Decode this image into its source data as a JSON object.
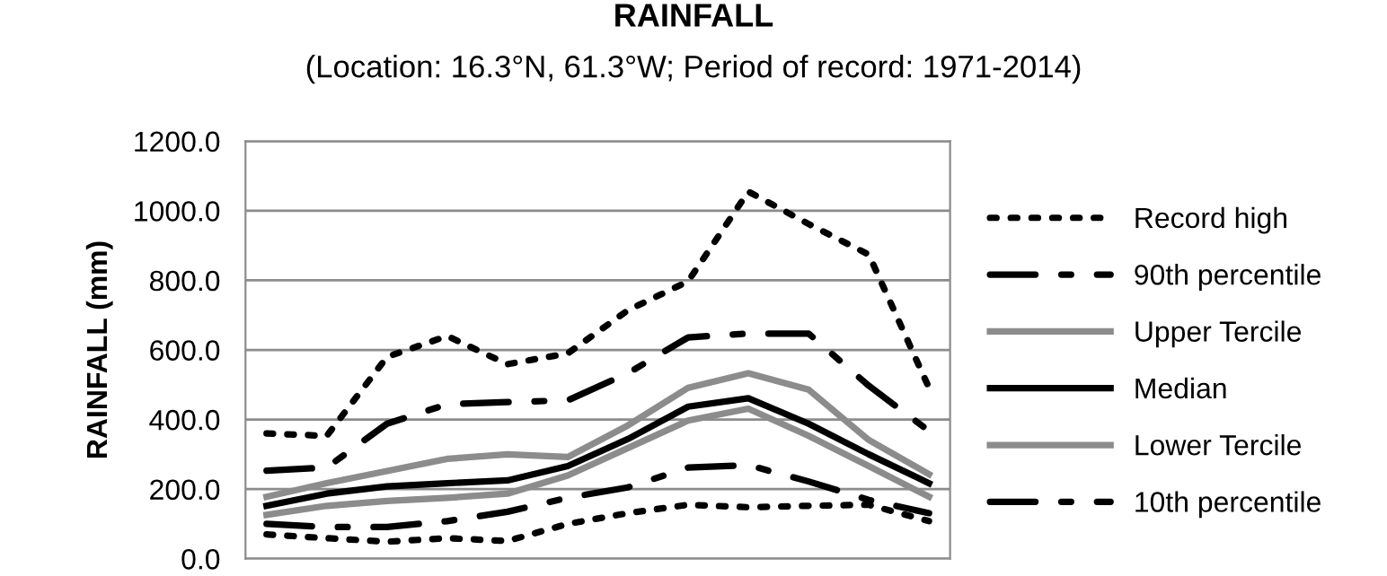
{
  "chart_data": {
    "type": "line",
    "title": "RAINFALL",
    "subtitle": "(Location: 16.3°N, 61.3°W; Period of record: 1971-2014)",
    "ylabel": "RAINFALL (mm)",
    "categories": [
      null,
      null,
      null,
      null,
      null,
      null,
      null,
      null,
      null,
      null,
      null,
      null
    ],
    "series": [
      {
        "name": "Record high",
        "color": "#000000",
        "line_style": "dotted",
        "values": [
          360,
          353,
          580,
          640,
          559,
          590,
          714,
          797,
          1055,
          962,
          874,
          491
        ]
      },
      {
        "name": "90th percentile",
        "color": "#000000",
        "line_style": "dashdot",
        "values": [
          253,
          262,
          388,
          444,
          450,
          455,
          533,
          636,
          647,
          647,
          497,
          367
        ]
      },
      {
        "name": "Upper Tercile",
        "color": "#8c8c8c",
        "line_style": "solid",
        "values": [
          178,
          217,
          252,
          287,
          300,
          292,
          383,
          491,
          533,
          486,
          341,
          243
        ]
      },
      {
        "name": "Median",
        "color": "#000000",
        "line_style": "solid",
        "values": [
          152,
          187,
          208,
          217,
          225,
          266,
          344,
          437,
          461,
          388,
          300,
          217
        ]
      },
      {
        "name": "Lower Tercile",
        "color": "#8c8c8c",
        "line_style": "solid",
        "values": [
          126,
          152,
          166,
          175,
          187,
          239,
          318,
          397,
          431,
          353,
          266,
          178
        ]
      },
      {
        "name": "10th percentile",
        "color": "#000000",
        "line_style": "dashdot",
        "values": [
          100,
          91,
          91,
          108,
          135,
          175,
          205,
          262,
          269,
          222,
          169,
          131
        ]
      },
      {
        "color": "#000000",
        "line_style": "dotted",
        "values": [
          70,
          59,
          49,
          59,
          51,
          100,
          131,
          155,
          148,
          152,
          155,
          108
        ]
      }
    ],
    "ylim": [
      0,
      1200
    ],
    "yticks": [
      {
        "value": 0,
        "label": "0.0"
      },
      {
        "value": 200,
        "label": "200.0"
      },
      {
        "value": 400,
        "label": "400.0"
      },
      {
        "value": 600,
        "label": "600.0"
      },
      {
        "value": 800,
        "label": "800.0"
      },
      {
        "value": 1000,
        "label": "1000.0"
      },
      {
        "value": 1200,
        "label": "1200.0"
      }
    ],
    "grid": "y",
    "legend": "right"
  }
}
